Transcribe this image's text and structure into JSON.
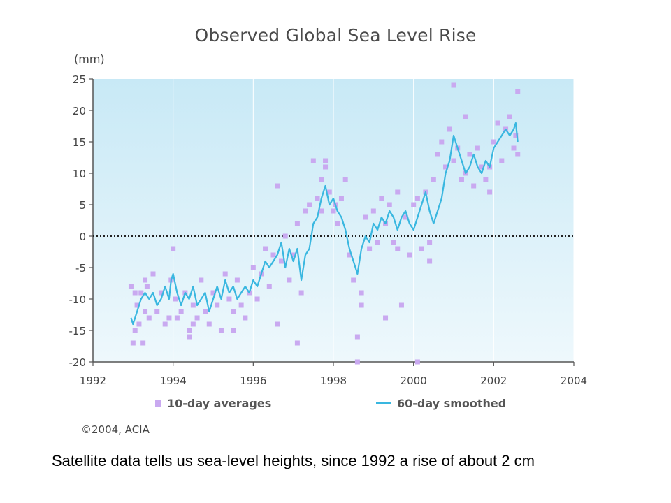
{
  "caption": "Satellite data tells us sea-level heights, since 1992 a rise of about 2 cm",
  "copyright": "©2004, ACIA",
  "colors": {
    "scatter": "#c9a9f0",
    "line": "#39b7e0",
    "bg_top": "#c8e9f6",
    "bg_bottom": "#eef8fc"
  },
  "chart_data": {
    "type": "line",
    "title": "Observed Global Sea Level Rise",
    "ylabel": "(mm)",
    "xlabel": "",
    "xlim": [
      1992,
      2004
    ],
    "ylim": [
      -20,
      25
    ],
    "x_ticks": [
      "1992",
      "1994",
      "1996",
      "1998",
      "2000",
      "2002",
      "2004"
    ],
    "y_ticks": [
      "25",
      "20",
      "15",
      "10",
      "5",
      "0",
      "-5",
      "-10",
      "-15",
      "-20"
    ],
    "zero_line": "dotted",
    "legend": [
      "10-day averages",
      "60-day smoothed"
    ],
    "series": [
      {
        "name": "60-day smoothed",
        "kind": "line",
        "x": [
          1992.95,
          1993.0,
          1993.1,
          1993.2,
          1993.3,
          1993.4,
          1993.5,
          1993.6,
          1993.7,
          1993.8,
          1993.9,
          1993.95,
          1994.0,
          1994.1,
          1994.2,
          1994.3,
          1994.4,
          1994.5,
          1994.6,
          1994.7,
          1994.8,
          1994.9,
          1995.0,
          1995.1,
          1995.2,
          1995.3,
          1995.4,
          1995.5,
          1995.6,
          1995.7,
          1995.8,
          1995.9,
          1996.0,
          1996.1,
          1996.2,
          1996.3,
          1996.4,
          1996.5,
          1996.6,
          1996.7,
          1996.8,
          1996.9,
          1997.0,
          1997.1,
          1997.2,
          1997.3,
          1997.4,
          1997.5,
          1997.6,
          1997.7,
          1997.8,
          1997.9,
          1998.0,
          1998.1,
          1998.2,
          1998.3,
          1998.4,
          1998.5,
          1998.6,
          1998.7,
          1998.8,
          1998.9,
          1999.0,
          1999.1,
          1999.2,
          1999.3,
          1999.4,
          1999.5,
          1999.6,
          1999.7,
          1999.8,
          1999.9,
          2000.0,
          2000.1,
          2000.2,
          2000.3,
          2000.4,
          2000.5,
          2000.6,
          2000.7,
          2000.8,
          2000.9,
          2001.0,
          2001.1,
          2001.2,
          2001.3,
          2001.4,
          2001.5,
          2001.6,
          2001.7,
          2001.8,
          2001.9,
          2002.0,
          2002.1,
          2002.2,
          2002.3,
          2002.4,
          2002.5,
          2002.55,
          2002.6
        ],
        "y": [
          -13,
          -14,
          -12,
          -10,
          -9,
          -10,
          -9,
          -11,
          -10,
          -8,
          -10,
          -7,
          -6,
          -9,
          -11,
          -9,
          -10,
          -8,
          -11,
          -10,
          -9,
          -12,
          -10,
          -8,
          -10,
          -7,
          -9,
          -8,
          -10,
          -9,
          -8,
          -9,
          -7,
          -8,
          -6,
          -4,
          -5,
          -4,
          -3,
          -1,
          -5,
          -2,
          -4,
          -2,
          -7,
          -3,
          -2,
          2,
          3,
          6,
          8,
          5,
          6,
          4,
          3,
          1,
          -2,
          -4,
          -6,
          -2,
          0,
          -1,
          2,
          1,
          3,
          2,
          4,
          3,
          1,
          3,
          4,
          2,
          1,
          3,
          5,
          7,
          4,
          2,
          4,
          6,
          10,
          12,
          16,
          14,
          12,
          10,
          11,
          13,
          11,
          10,
          12,
          11,
          14,
          15,
          16,
          17,
          16,
          17,
          18,
          15
        ]
      },
      {
        "name": "10-day averages",
        "kind": "scatter",
        "x": [
          1992.95,
          1993.0,
          1993.05,
          1993.1,
          1993.15,
          1993.2,
          1993.25,
          1993.3,
          1993.35,
          1993.4,
          1993.5,
          1993.6,
          1993.7,
          1993.8,
          1993.9,
          1993.95,
          1994.0,
          1994.05,
          1994.1,
          1994.2,
          1994.3,
          1994.4,
          1994.5,
          1994.6,
          1994.7,
          1994.8,
          1994.9,
          1995.0,
          1995.1,
          1995.2,
          1995.3,
          1995.4,
          1995.5,
          1995.6,
          1995.7,
          1995.8,
          1995.9,
          1996.0,
          1996.1,
          1996.2,
          1996.3,
          1996.4,
          1996.5,
          1996.6,
          1996.7,
          1996.8,
          1996.9,
          1997.0,
          1997.1,
          1997.2,
          1997.3,
          1997.4,
          1997.5,
          1997.6,
          1997.7,
          1997.8,
          1997.9,
          1998.0,
          1998.1,
          1998.2,
          1998.3,
          1998.4,
          1998.5,
          1998.6,
          1998.7,
          1998.8,
          1998.9,
          1999.0,
          1999.1,
          1999.2,
          1999.3,
          1999.4,
          1999.5,
          1999.6,
          1999.7,
          1999.8,
          1999.9,
          2000.0,
          2000.1,
          2000.2,
          2000.3,
          2000.4,
          2000.5,
          2000.6,
          2000.7,
          2000.8,
          2000.9,
          2001.0,
          2001.1,
          2001.2,
          2001.3,
          2001.4,
          2001.5,
          2001.6,
          2001.7,
          2001.8,
          2001.9,
          2002.0,
          2002.1,
          2002.2,
          2002.3,
          2002.4,
          2002.5,
          2002.55,
          2002.6,
          1993.05,
          1993.3,
          1994.4,
          1994.5,
          1995.5,
          1996.6,
          1997.1,
          1998.6,
          1999.3,
          2000.1,
          2000.4,
          2001.0,
          2001.3,
          2001.9,
          2002.6,
          1998.7,
          1997.8,
          1997.7,
          1998.05,
          1999.6
        ],
        "y": [
          -8,
          -17,
          -15,
          -11,
          -14,
          -9,
          -17,
          -12,
          -8,
          -13,
          -6,
          -12,
          -9,
          -14,
          -13,
          -7,
          -2,
          -10,
          -13,
          -12,
          -9,
          -16,
          -11,
          -13,
          -7,
          -12,
          -14,
          -9,
          -11,
          -15,
          -6,
          -10,
          -12,
          -7,
          -11,
          -13,
          -9,
          -5,
          -10,
          -6,
          -2,
          -8,
          -3,
          8,
          -4,
          0,
          -7,
          -3,
          2,
          -9,
          4,
          5,
          12,
          6,
          9,
          11,
          7,
          4,
          2,
          6,
          9,
          -3,
          -7,
          -16,
          -9,
          3,
          -2,
          4,
          -1,
          6,
          2,
          5,
          -1,
          7,
          -11,
          3,
          -3,
          5,
          6,
          -2,
          7,
          -4,
          9,
          13,
          15,
          11,
          17,
          12,
          14,
          9,
          10,
          13,
          8,
          14,
          11,
          9,
          7,
          15,
          18,
          12,
          17,
          19,
          14,
          16,
          13,
          -9,
          -7,
          -15,
          -14,
          -15,
          -14,
          -17,
          -20,
          -13,
          -20,
          -1,
          24,
          19,
          11,
          23,
          -11,
          12,
          4,
          5,
          -2
        ]
      }
    ]
  }
}
